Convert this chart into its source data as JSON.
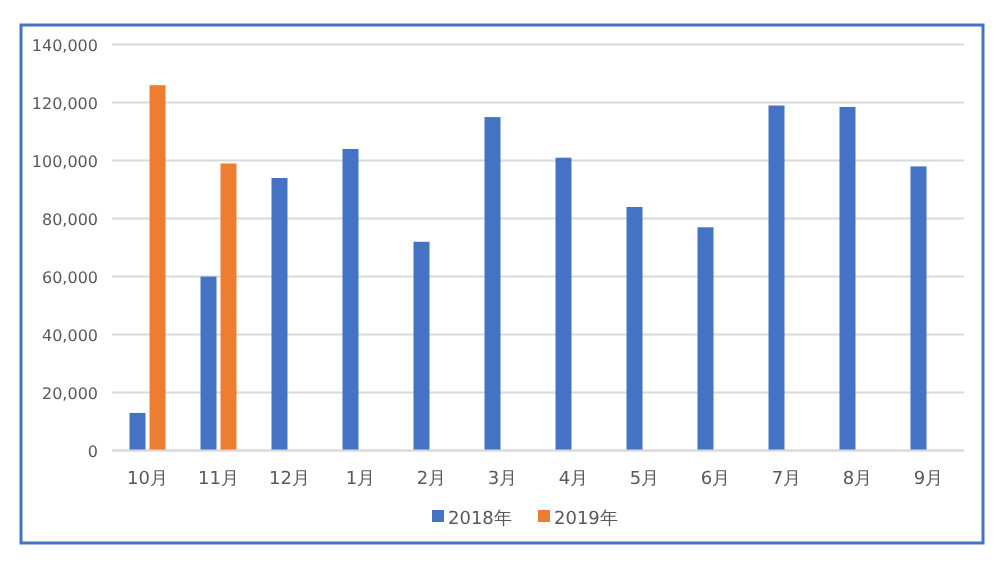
{
  "chart_data": {
    "type": "bar",
    "categories": [
      "10月",
      "11月",
      "12月",
      "1月",
      "2月",
      "3月",
      "4月",
      "5月",
      "6月",
      "7月",
      "8月",
      "9月"
    ],
    "series": [
      {
        "name": "2018年",
        "color": "#4472c4",
        "values": [
          13000,
          60000,
          94000,
          104000,
          72000,
          115000,
          101000,
          84000,
          77000,
          119000,
          118500,
          98000
        ]
      },
      {
        "name": "2019年",
        "color": "#ed7d31",
        "values": [
          126000,
          99000,
          null,
          null,
          null,
          null,
          null,
          null,
          null,
          null,
          null,
          null
        ]
      }
    ],
    "ylim": [
      0,
      140000
    ],
    "yticks": [
      {
        "value": 0,
        "label": "0"
      },
      {
        "value": 20000,
        "label": "20,000"
      },
      {
        "value": 40000,
        "label": "40,000"
      },
      {
        "value": 60000,
        "label": "60,000"
      },
      {
        "value": 80000,
        "label": "80,000"
      },
      {
        "value": 100000,
        "label": "100,000"
      },
      {
        "value": 120000,
        "label": "120,000"
      },
      {
        "value": 140000,
        "label": "140,000"
      }
    ],
    "grid": "y",
    "legend": "bottom"
  }
}
